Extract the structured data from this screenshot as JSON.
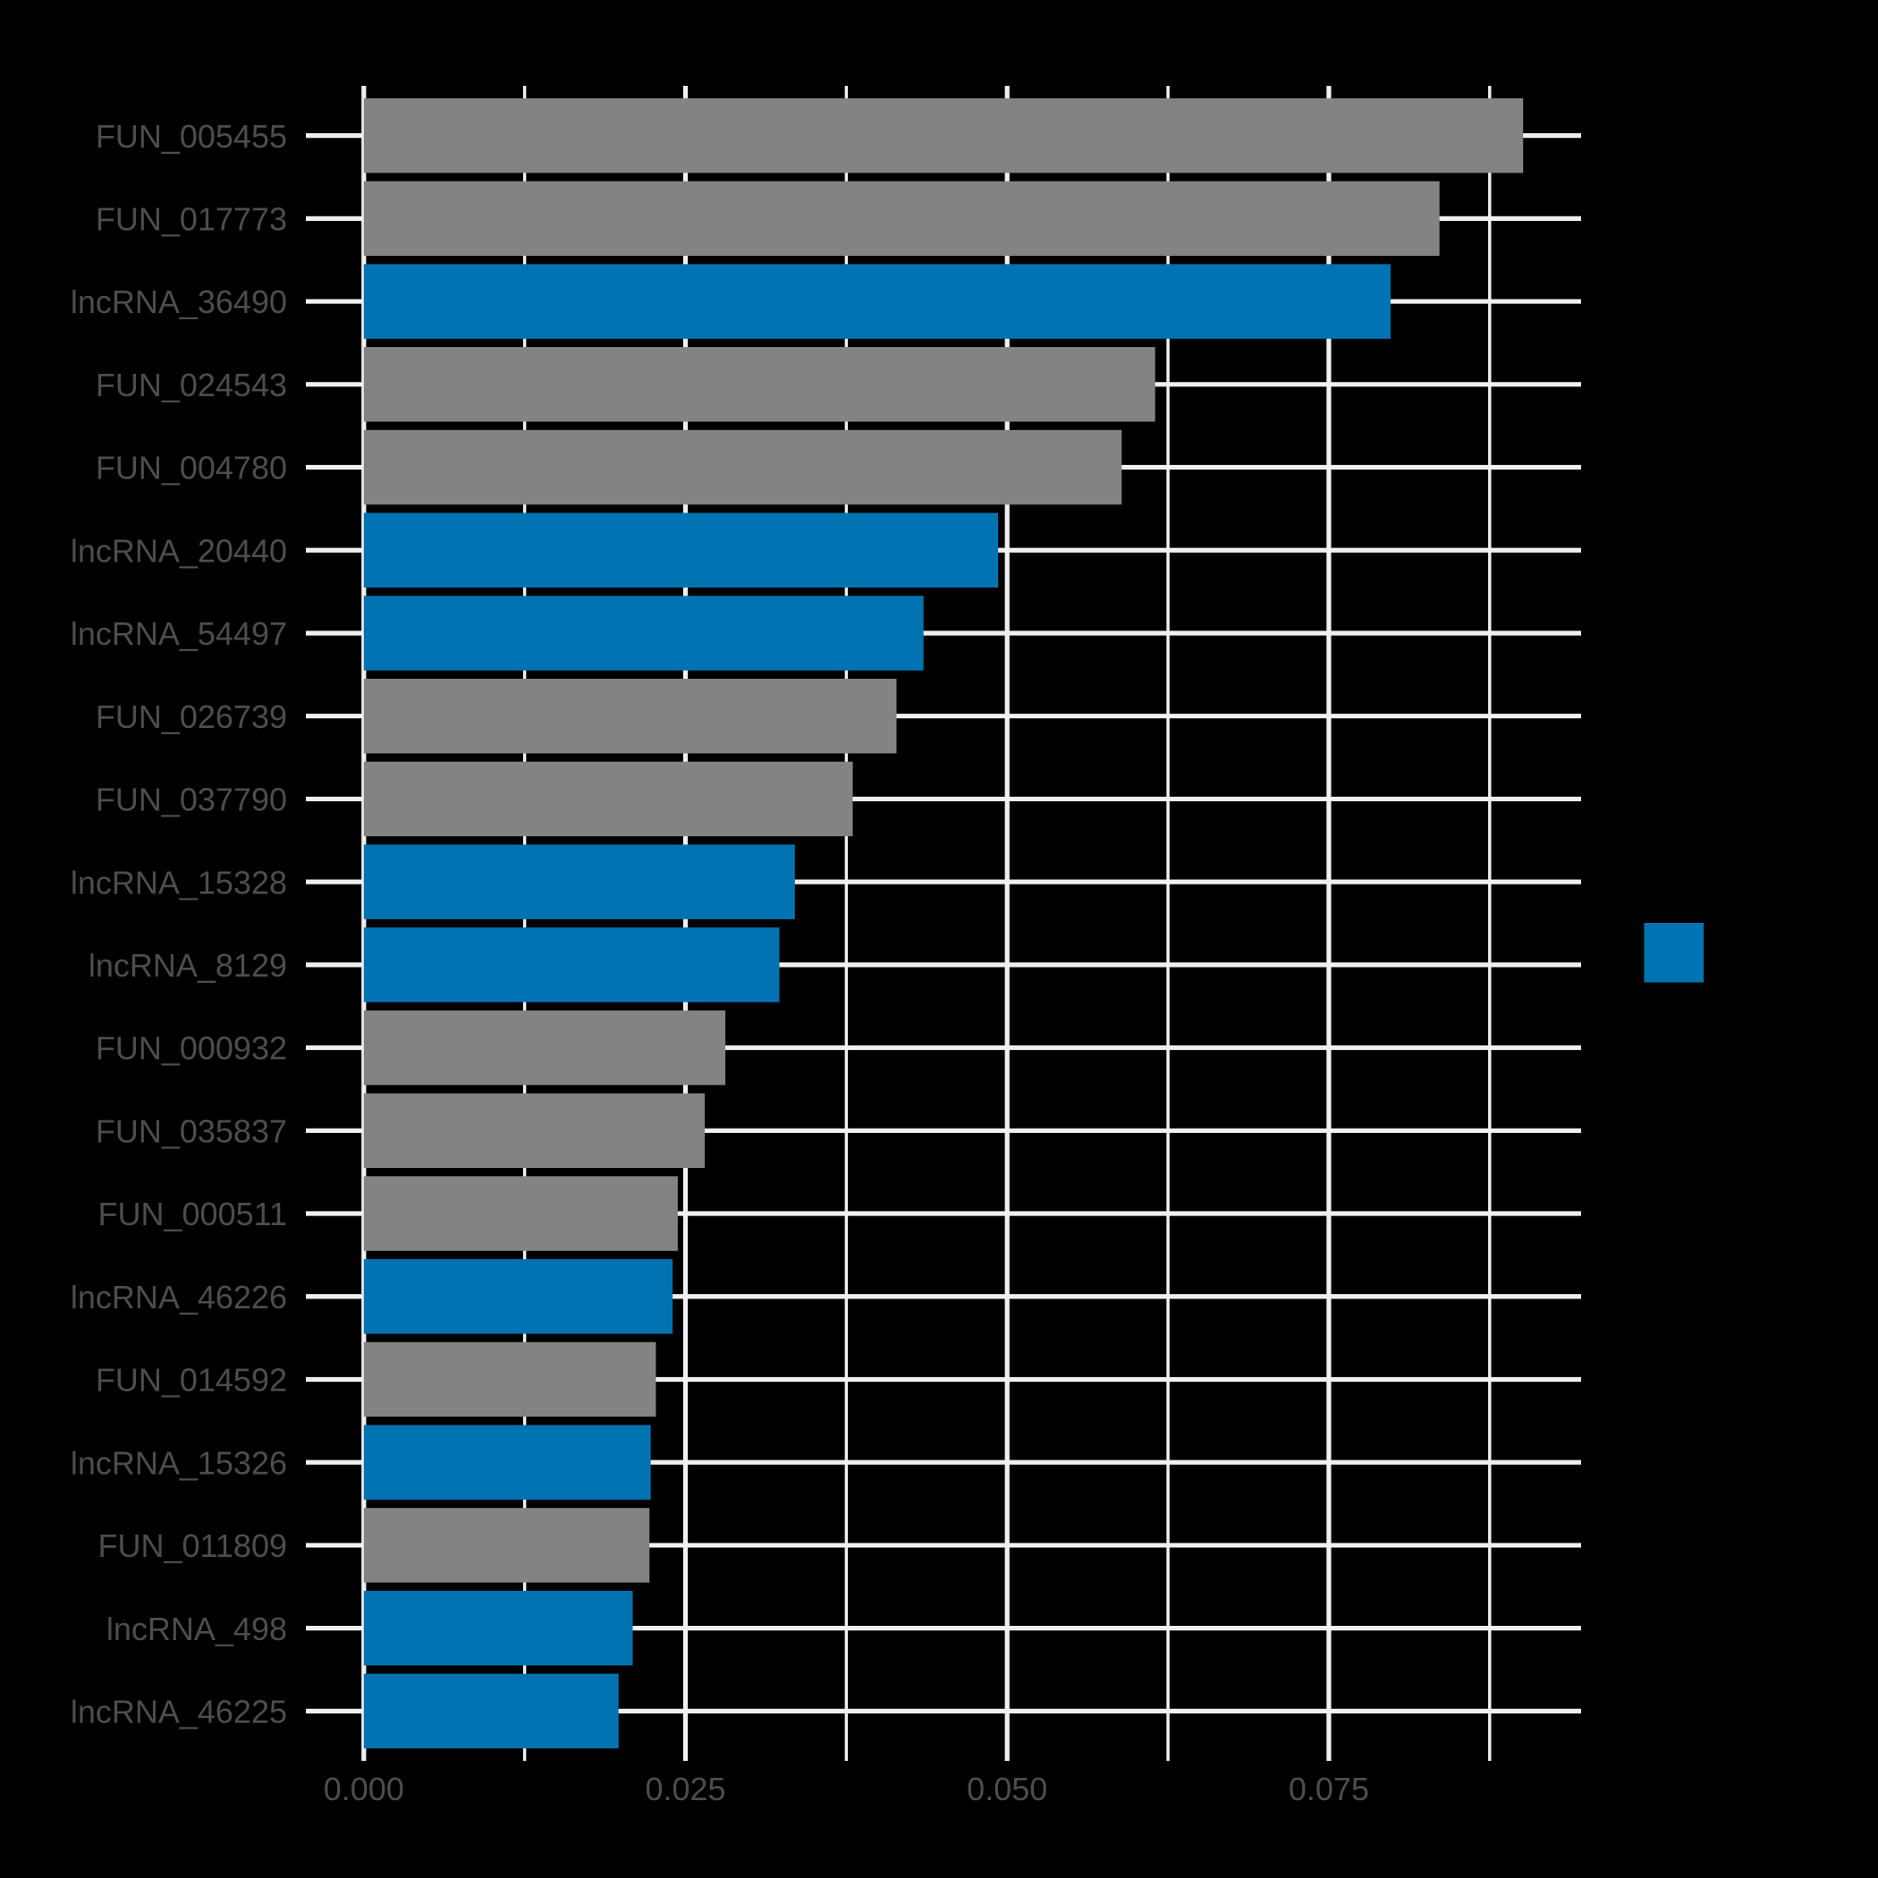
{
  "chart_data": {
    "type": "bar",
    "orientation": "horizontal",
    "title": "",
    "subtitle": "",
    "xlabel": "",
    "ylabel": "",
    "categories": [
      "FUN_005455",
      "FUN_017773",
      "lncRNA_36490",
      "FUN_024543",
      "FUN_004780",
      "lncRNA_20440",
      "lncRNA_54497",
      "FUN_026739",
      "FUN_037790",
      "lncRNA_15328",
      "lncRNA_8129",
      "FUN_000932",
      "FUN_035837",
      "FUN_000511",
      "lncRNA_46226",
      "FUN_014592",
      "lncRNA_15326",
      "FUN_011809",
      "lncRNA_498",
      "lncRNA_46225"
    ],
    "values": [
      0.0901,
      0.0836,
      0.0798,
      0.0615,
      0.0589,
      0.0493,
      0.0435,
      0.0414,
      0.038,
      0.0335,
      0.0323,
      0.0281,
      0.0265,
      0.0244,
      0.024,
      0.0227,
      0.0223,
      0.0222,
      0.0209,
      0.0198
    ],
    "groups": [
      "FUN",
      "FUN",
      "lncRNA",
      "FUN",
      "FUN",
      "lncRNA",
      "lncRNA",
      "FUN",
      "FUN",
      "lncRNA",
      "lncRNA",
      "FUN",
      "FUN",
      "FUN",
      "lncRNA",
      "FUN",
      "lncRNA",
      "FUN",
      "lncRNA",
      "lncRNA"
    ],
    "group_colors": {
      "FUN": "#838383",
      "lncRNA": "#0173B2"
    },
    "x_axis": {
      "tick_labels": [
        "0.000",
        "0.025",
        "0.050",
        "0.075"
      ],
      "major_breaks": [
        0,
        0.025,
        0.05,
        0.075
      ],
      "minor_breaks": [
        0.0125,
        0.0375,
        0.0625,
        0.0875
      ],
      "expand_mult": 0.05
    },
    "y_axis": {
      "expand_add": 0.6,
      "bar_rel_width": 0.9
    },
    "grid": {
      "show": true,
      "which": "major+minor",
      "color": "#F0F0F0"
    },
    "legend": {
      "position": "right-center",
      "keys": [
        {
          "label": "",
          "color": "#0173B2"
        }
      ]
    },
    "colors": {
      "background": "#000000",
      "grid": "#F0F0F0",
      "axis_text": "#4D4D4D"
    }
  }
}
